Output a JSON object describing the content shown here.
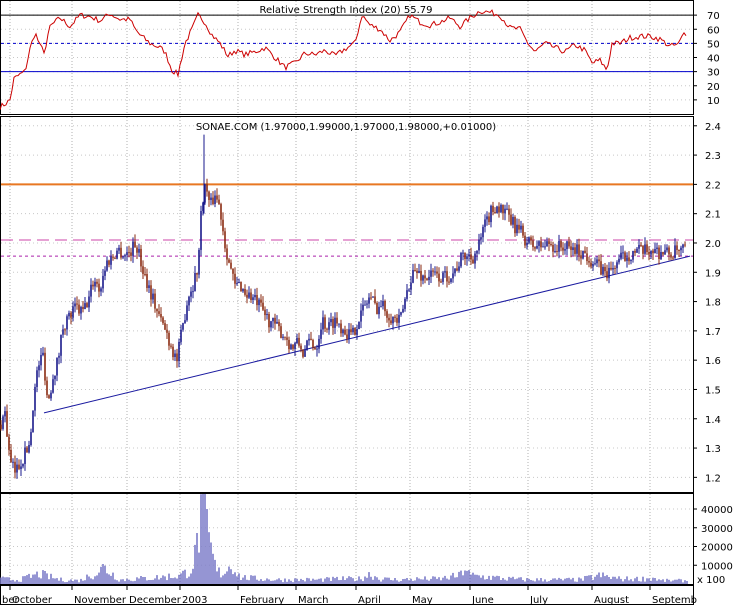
{
  "chart_data": [
    {
      "id": "rsi",
      "type": "line",
      "title": "Relative Strength Index (20) 55.79",
      "ylim": [
        0,
        80
      ],
      "yticks": [
        10,
        20,
        30,
        40,
        50,
        60,
        70
      ],
      "levels": [
        {
          "value": 70,
          "style": "solid",
          "color": "#000000"
        },
        {
          "value": 50,
          "style": "dotted",
          "color": "#0000cc"
        },
        {
          "value": 30,
          "style": "solid",
          "color": "#0000cc"
        }
      ],
      "color": "#cc0000",
      "keypoints": [
        [
          0,
          5
        ],
        [
          5,
          7
        ],
        [
          10,
          10
        ],
        [
          14,
          25
        ],
        [
          20,
          28
        ],
        [
          25,
          30
        ],
        [
          30,
          46
        ],
        [
          35,
          58
        ],
        [
          40,
          48
        ],
        [
          45,
          44
        ],
        [
          50,
          62
        ],
        [
          60,
          68
        ],
        [
          70,
          62
        ],
        [
          80,
          70
        ],
        [
          90,
          69
        ],
        [
          100,
          66
        ],
        [
          110,
          71
        ],
        [
          120,
          67
        ],
        [
          130,
          67
        ],
        [
          135,
          60
        ],
        [
          140,
          56
        ],
        [
          150,
          50
        ],
        [
          160,
          47
        ],
        [
          165,
          44
        ],
        [
          172,
          31
        ],
        [
          178,
          28
        ],
        [
          185,
          50
        ],
        [
          192,
          60
        ],
        [
          198,
          70
        ],
        [
          205,
          65
        ],
        [
          212,
          56
        ],
        [
          220,
          50
        ],
        [
          228,
          41
        ],
        [
          235,
          45
        ],
        [
          245,
          42
        ],
        [
          255,
          44
        ],
        [
          265,
          47
        ],
        [
          275,
          40
        ],
        [
          285,
          33
        ],
        [
          295,
          36
        ],
        [
          305,
          43
        ],
        [
          315,
          42
        ],
        [
          325,
          45
        ],
        [
          335,
          41
        ],
        [
          345,
          46
        ],
        [
          355,
          50
        ],
        [
          362,
          70
        ],
        [
          370,
          63
        ],
        [
          380,
          60
        ],
        [
          390,
          52
        ],
        [
          400,
          58
        ],
        [
          410,
          70
        ],
        [
          420,
          65
        ],
        [
          430,
          63
        ],
        [
          440,
          65
        ],
        [
          450,
          68
        ],
        [
          460,
          62
        ],
        [
          470,
          68
        ],
        [
          480,
          73
        ],
        [
          490,
          72
        ],
        [
          500,
          70
        ],
        [
          510,
          61
        ],
        [
          520,
          60
        ],
        [
          528,
          50
        ],
        [
          535,
          44
        ],
        [
          545,
          50
        ],
        [
          555,
          47
        ],
        [
          565,
          44
        ],
        [
          575,
          49
        ],
        [
          585,
          45
        ],
        [
          592,
          36
        ],
        [
          600,
          38
        ],
        [
          607,
          31
        ],
        [
          612,
          50
        ],
        [
          620,
          50
        ],
        [
          630,
          54
        ],
        [
          640,
          55
        ],
        [
          650,
          55
        ],
        [
          660,
          53
        ],
        [
          670,
          48
        ],
        [
          678,
          49
        ],
        [
          684,
          57
        ]
      ]
    },
    {
      "id": "price",
      "type": "candlestick",
      "title": "SONAE.COM (1.97000,1.99000,1.97000,1.98000,+0.01000)",
      "ylim": [
        1.15,
        2.43
      ],
      "yticks": [
        1.2,
        1.3,
        1.4,
        1.5,
        1.6,
        1.7,
        1.8,
        1.9,
        2.0,
        2.1,
        2.2,
        2.3,
        2.4
      ],
      "x_labels": [
        "ber",
        "October",
        "November",
        "December",
        "2003",
        "February",
        "March",
        "April",
        "May",
        "June",
        "July",
        "August",
        "Septemb"
      ],
      "x_label_pos": [
        0,
        10,
        72,
        127,
        180,
        238,
        296,
        356,
        410,
        470,
        528,
        592,
        650
      ],
      "horizontal_lines": [
        {
          "value": 2.2,
          "color": "#e87722",
          "style": "solid"
        },
        {
          "value": 2.01,
          "color": "#cc44aa",
          "style": "dashed"
        },
        {
          "value": 1.955,
          "color": "#aa22aa",
          "style": "dotted"
        }
      ],
      "trendline": {
        "from": [
          44,
          1.42
        ],
        "to": [
          690,
          1.955
        ],
        "color": "#1a1aa0"
      },
      "up_color": "#1a1a8c",
      "down_color": "#8a2a10",
      "keypoints": [
        [
          0,
          1.38
        ],
        [
          5,
          1.42
        ],
        [
          10,
          1.25
        ],
        [
          15,
          1.22
        ],
        [
          20,
          1.25
        ],
        [
          25,
          1.28
        ],
        [
          30,
          1.32
        ],
        [
          33,
          1.45
        ],
        [
          38,
          1.58
        ],
        [
          43,
          1.62
        ],
        [
          48,
          1.45
        ],
        [
          53,
          1.55
        ],
        [
          58,
          1.6
        ],
        [
          63,
          1.72
        ],
        [
          70,
          1.75
        ],
        [
          76,
          1.78
        ],
        [
          82,
          1.76
        ],
        [
          88,
          1.8
        ],
        [
          94,
          1.88
        ],
        [
          100,
          1.84
        ],
        [
          106,
          1.93
        ],
        [
          112,
          1.95
        ],
        [
          118,
          1.98
        ],
        [
          124,
          1.96
        ],
        [
          130,
          1.97
        ],
        [
          136,
          2.0
        ],
        [
          142,
          1.92
        ],
        [
          148,
          1.86
        ],
        [
          154,
          1.8
        ],
        [
          160,
          1.74
        ],
        [
          166,
          1.7
        ],
        [
          172,
          1.64
        ],
        [
          177,
          1.6
        ],
        [
          183,
          1.72
        ],
        [
          188,
          1.82
        ],
        [
          193,
          1.86
        ],
        [
          198,
          1.92
        ],
        [
          202,
          2.15
        ],
        [
          206,
          2.2
        ],
        [
          210,
          2.12
        ],
        [
          215,
          2.17
        ],
        [
          220,
          2.12
        ],
        [
          225,
          2.0
        ],
        [
          230,
          1.92
        ],
        [
          235,
          1.85
        ],
        [
          240,
          1.86
        ],
        [
          245,
          1.83
        ],
        [
          250,
          1.82
        ],
        [
          256,
          1.8
        ],
        [
          262,
          1.77
        ],
        [
          268,
          1.74
        ],
        [
          274,
          1.72
        ],
        [
          280,
          1.7
        ],
        [
          286,
          1.68
        ],
        [
          292,
          1.64
        ],
        [
          298,
          1.66
        ],
        [
          304,
          1.62
        ],
        [
          310,
          1.67
        ],
        [
          316,
          1.64
        ],
        [
          322,
          1.74
        ],
        [
          328,
          1.71
        ],
        [
          334,
          1.74
        ],
        [
          340,
          1.72
        ],
        [
          346,
          1.7
        ],
        [
          352,
          1.68
        ],
        [
          358,
          1.74
        ],
        [
          364,
          1.78
        ],
        [
          370,
          1.82
        ],
        [
          376,
          1.78
        ],
        [
          382,
          1.79
        ],
        [
          388,
          1.76
        ],
        [
          394,
          1.74
        ],
        [
          400,
          1.73
        ],
        [
          406,
          1.82
        ],
        [
          412,
          1.9
        ],
        [
          418,
          1.9
        ],
        [
          424,
          1.88
        ],
        [
          430,
          1.89
        ],
        [
          436,
          1.89
        ],
        [
          442,
          1.88
        ],
        [
          448,
          1.89
        ],
        [
          454,
          1.9
        ],
        [
          460,
          1.94
        ],
        [
          466,
          1.96
        ],
        [
          472,
          1.95
        ],
        [
          478,
          1.98
        ],
        [
          484,
          2.05
        ],
        [
          490,
          2.1
        ],
        [
          496,
          2.13
        ],
        [
          502,
          2.11
        ],
        [
          508,
          2.09
        ],
        [
          514,
          2.06
        ],
        [
          520,
          2.04
        ],
        [
          526,
          2.01
        ],
        [
          532,
          1.99
        ],
        [
          538,
          1.99
        ],
        [
          544,
          1.99
        ],
        [
          550,
          2.0
        ],
        [
          556,
          1.98
        ],
        [
          562,
          1.99
        ],
        [
          568,
          1.98
        ],
        [
          574,
          1.98
        ],
        [
          580,
          1.97
        ],
        [
          586,
          1.96
        ],
        [
          592,
          1.94
        ],
        [
          598,
          1.92
        ],
        [
          604,
          1.9
        ],
        [
          610,
          1.9
        ],
        [
          616,
          1.93
        ],
        [
          622,
          1.95
        ],
        [
          628,
          1.96
        ],
        [
          634,
          1.97
        ],
        [
          640,
          1.97
        ],
        [
          646,
          1.97
        ],
        [
          652,
          1.98
        ],
        [
          658,
          1.97
        ],
        [
          664,
          1.97
        ],
        [
          670,
          1.96
        ],
        [
          676,
          1.97
        ],
        [
          682,
          1.97
        ],
        [
          686,
          1.98
        ]
      ]
    },
    {
      "id": "volume",
      "type": "bar",
      "ylim": [
        0,
        48000
      ],
      "yticks": [
        10000,
        20000,
        30000,
        40000
      ],
      "ytick_labels": [
        "10000",
        "20000",
        "30000",
        "40000"
      ],
      "scale_label": "x 100",
      "color": "#7b7bc8",
      "keypoints": [
        [
          0,
          3000
        ],
        [
          20,
          2500
        ],
        [
          40,
          6000
        ],
        [
          45,
          5000
        ],
        [
          60,
          2500
        ],
        [
          80,
          2000
        ],
        [
          100,
          8000
        ],
        [
          104,
          10000
        ],
        [
          120,
          2500
        ],
        [
          150,
          3500
        ],
        [
          180,
          5000
        ],
        [
          190,
          8000
        ],
        [
          195,
          16000
        ],
        [
          200,
          35000
        ],
        [
          204,
          45000
        ],
        [
          208,
          28000
        ],
        [
          212,
          18000
        ],
        [
          216,
          8000
        ],
        [
          222,
          6000
        ],
        [
          232,
          12000
        ],
        [
          240,
          4000
        ],
        [
          260,
          3000
        ],
        [
          280,
          2500
        ],
        [
          300,
          2500
        ],
        [
          320,
          2500
        ],
        [
          340,
          3000
        ],
        [
          360,
          3000
        ],
        [
          370,
          6000
        ],
        [
          380,
          3000
        ],
        [
          400,
          2500
        ],
        [
          420,
          3000
        ],
        [
          440,
          3000
        ],
        [
          460,
          5000
        ],
        [
          465,
          10000
        ],
        [
          470,
          5000
        ],
        [
          490,
          4000
        ],
        [
          510,
          3000
        ],
        [
          530,
          2500
        ],
        [
          560,
          2500
        ],
        [
          580,
          2500
        ],
        [
          600,
          5000
        ],
        [
          620,
          3000
        ],
        [
          640,
          3000
        ],
        [
          655,
          3500
        ],
        [
          660,
          2000
        ],
        [
          680,
          2000
        ],
        [
          690,
          2000
        ]
      ]
    }
  ]
}
